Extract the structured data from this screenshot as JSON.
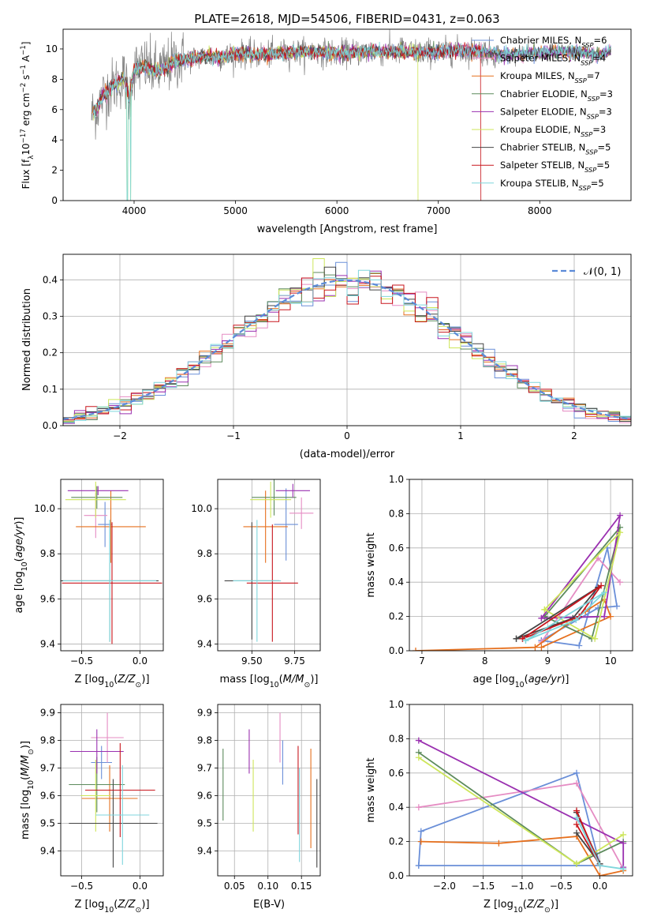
{
  "figure": {
    "title": "PLATE=2618, MJD=54506, FIBERID=0431, z=0.063"
  },
  "series": [
    {
      "name": "Chabrier MILES",
      "nssp": "6",
      "color": "#6a8fd8"
    },
    {
      "name": "Salpeter MILES",
      "nssp": "4",
      "color": "#e58cc3"
    },
    {
      "name": "Kroupa MILES",
      "nssp": "7",
      "color": "#e6701e"
    },
    {
      "name": "Chabrier ELODIE",
      "nssp": "3",
      "color": "#5c8a5c"
    },
    {
      "name": "Salpeter ELODIE",
      "nssp": "3",
      "color": "#9a30b0"
    },
    {
      "name": "Kroupa ELODIE",
      "nssp": "3",
      "color": "#cde65a"
    },
    {
      "name": "Chabrier STELIB",
      "nssp": "5",
      "color": "#444444"
    },
    {
      "name": "Salpeter STELIB",
      "nssp": "5",
      "color": "#c8161d"
    },
    {
      "name": "Kroupa STELIB",
      "nssp": "5",
      "color": "#7fd6dc"
    }
  ],
  "chart_data": [
    {
      "id": "spectrum",
      "type": "line",
      "xlabel": "wavelength [Angstrom, rest frame]",
      "ylabel": "Flux [f_λ10^-17 erg cm^-2 s^-1 A^-1]",
      "xlim": [
        3300,
        8900
      ],
      "ylim": [
        0,
        11.3
      ],
      "xticks": [
        4000,
        5000,
        6000,
        7000,
        8000
      ],
      "yticks": [
        0,
        2,
        4,
        6,
        8,
        10
      ],
      "data_color": "#808080",
      "continuum": {
        "x": [
          3580,
          3650,
          3700,
          3800,
          3900,
          3950,
          4000,
          4100,
          4200,
          4300,
          4400,
          4500,
          4700,
          4900,
          5000,
          5200,
          5400,
          5600,
          5800,
          6000,
          6200,
          6400,
          6600,
          6800,
          7000,
          7200,
          7400,
          7600,
          7800,
          8000,
          8200,
          8400,
          8600,
          8700
        ],
        "y": [
          5.6,
          6.3,
          7.0,
          7.6,
          8.1,
          6.8,
          8.6,
          8.9,
          8.5,
          8.7,
          9.2,
          9.3,
          9.5,
          9.5,
          9.7,
          9.6,
          9.7,
          9.8,
          9.8,
          9.7,
          9.8,
          9.8,
          9.8,
          9.8,
          9.8,
          9.9,
          9.9,
          9.6,
          9.7,
          9.7,
          9.8,
          9.8,
          9.6,
          9.9
        ]
      },
      "dips": [
        {
          "x": 3933,
          "to": 0
        },
        {
          "x": 3968,
          "to": 0
        },
        {
          "x": 6800,
          "to": 0
        },
        {
          "x": 7420,
          "to": 0
        }
      ]
    },
    {
      "id": "residuals",
      "type": "histogram",
      "xlabel": "(data-model)/error",
      "ylabel": "Normed distribution",
      "xlim": [
        -2.5,
        2.5
      ],
      "ylim": [
        0,
        0.47
      ],
      "xticks": [
        -2,
        -1,
        0,
        1,
        2
      ],
      "yticks": [
        0.0,
        0.1,
        0.2,
        0.3,
        0.4
      ],
      "bin_width": 0.1,
      "reference_label": "𝒩(0, 1)",
      "reference_color": "#5b8bd8"
    },
    {
      "id": "age-vs-Z",
      "type": "errorbar",
      "xlabel": "Z [log10(Z/Z⊙)]",
      "ylabel": "age [log10(age/yr)]",
      "xlim": [
        -0.68,
        0.2
      ],
      "ylim": [
        9.37,
        10.13
      ],
      "xticks": [
        -0.5,
        0.0
      ],
      "yticks": [
        9.4,
        9.6,
        9.8,
        10.0
      ],
      "points": [
        {
          "x": -0.3,
          "xerr": 0.06,
          "y": 9.93,
          "yerr": 0.1
        },
        {
          "x": -0.38,
          "xerr": 0.1,
          "y": 9.97,
          "yerr": 0.1
        },
        {
          "x": -0.25,
          "xerr": 0.3,
          "y": 9.92,
          "yerr": 0.16
        },
        {
          "x": -0.37,
          "xerr": 0.22,
          "y": 10.05,
          "yerr": 0.05
        },
        {
          "x": -0.36,
          "xerr": 0.26,
          "y": 10.08,
          "yerr": 0.02
        },
        {
          "x": -0.38,
          "xerr": 0.26,
          "y": 10.04,
          "yerr": 0.08
        },
        {
          "x": -0.26,
          "xerr": 0.42,
          "y": 9.68,
          "yerr": 0.27
        },
        {
          "x": -0.24,
          "xerr": 0.43,
          "y": 9.67,
          "yerr": 0.27
        },
        {
          "x": -0.26,
          "xerr": 0.4,
          "y": 9.68,
          "yerr": 0.27
        }
      ]
    },
    {
      "id": "age-vs-mass",
      "type": "errorbar",
      "xlabel": "mass [log10(M/M⊙)]",
      "ylabel": "",
      "xlim": [
        9.3,
        9.9
      ],
      "ylim": [
        9.37,
        10.13
      ],
      "xticks": [
        9.5,
        9.75
      ],
      "yticks": [
        9.4,
        9.6,
        9.8,
        10.0
      ],
      "points": [
        {
          "x": 9.7,
          "xerr": 0.07,
          "y": 9.93,
          "yerr": 0.16
        },
        {
          "x": 9.79,
          "xerr": 0.07,
          "y": 9.98,
          "yerr": 0.07
        },
        {
          "x": 9.58,
          "xerr": 0.13,
          "y": 9.92,
          "yerr": 0.16
        },
        {
          "x": 9.63,
          "xerr": 0.13,
          "y": 10.05,
          "yerr": 0.08
        },
        {
          "x": 9.74,
          "xerr": 0.1,
          "y": 10.08,
          "yerr": 0.03
        },
        {
          "x": 9.61,
          "xerr": 0.12,
          "y": 10.04,
          "yerr": 0.08
        },
        {
          "x": 9.5,
          "xerr": 0.16,
          "y": 9.68,
          "yerr": 0.26
        },
        {
          "x": 9.62,
          "xerr": 0.15,
          "y": 9.67,
          "yerr": 0.26
        },
        {
          "x": 9.53,
          "xerr": 0.14,
          "y": 9.68,
          "yerr": 0.27
        }
      ]
    },
    {
      "id": "mass-weight-vs-age",
      "type": "line",
      "xlabel": "age [log10(age/yr)]",
      "ylabel": "mass weight",
      "xlim": [
        6.8,
        10.35
      ],
      "ylim": [
        0.0,
        1.0
      ],
      "xticks": [
        7,
        8,
        9,
        10
      ],
      "yticks": [
        0.0,
        0.2,
        0.4,
        0.6,
        0.8,
        1.0
      ],
      "lines": [
        {
          "x": [
            8.9,
            9.5,
            9.95,
            10.1,
            9.8,
            8.9
          ],
          "y": [
            0.06,
            0.03,
            0.6,
            0.26,
            0.25,
            0.06
          ]
        },
        {
          "x": [
            8.9,
            9.8,
            10.15
          ],
          "y": [
            0.05,
            0.54,
            0.4
          ]
        },
        {
          "x": [
            6.9,
            8.8,
            9.6,
            9.9,
            10.0,
            8.9
          ],
          "y": [
            0.0,
            0.02,
            0.23,
            0.3,
            0.2,
            0.02
          ]
        },
        {
          "x": [
            8.95,
            9.7,
            10.15,
            8.95
          ],
          "y": [
            0.2,
            0.07,
            0.72,
            0.2
          ]
        },
        {
          "x": [
            8.9,
            9.9,
            10.15,
            8.9
          ],
          "y": [
            0.19,
            0.2,
            0.79,
            0.19
          ]
        },
        {
          "x": [
            8.95,
            9.75,
            10.15,
            8.95
          ],
          "y": [
            0.24,
            0.07,
            0.69,
            0.24
          ]
        },
        {
          "x": [
            8.5,
            9.4,
            9.8,
            8.5
          ],
          "y": [
            0.07,
            0.19,
            0.37,
            0.07
          ]
        },
        {
          "x": [
            8.6,
            9.5,
            9.85,
            8.6
          ],
          "y": [
            0.07,
            0.2,
            0.38,
            0.07
          ]
        },
        {
          "x": [
            8.65,
            9.45,
            9.9,
            8.65
          ],
          "y": [
            0.06,
            0.18,
            0.34,
            0.06
          ]
        }
      ]
    },
    {
      "id": "mass-vs-Z",
      "type": "errorbar",
      "xlabel": "Z [log10(Z/Z⊙)]",
      "ylabel": "mass [log10(M/M⊙)]",
      "xlim": [
        -0.68,
        0.2
      ],
      "ylim": [
        9.31,
        9.93
      ],
      "xticks": [
        -0.5,
        0.0
      ],
      "yticks": [
        9.4,
        9.5,
        9.6,
        9.7,
        9.8,
        9.9
      ],
      "points": [
        {
          "x": -0.33,
          "xerr": 0.09,
          "y": 9.72,
          "yerr": 0.06
        },
        {
          "x": -0.28,
          "xerr": 0.14,
          "y": 9.81,
          "yerr": 0.09
        },
        {
          "x": -0.26,
          "xerr": 0.24,
          "y": 9.59,
          "yerr": 0.12
        },
        {
          "x": -0.37,
          "xerr": 0.24,
          "y": 9.64,
          "yerr": 0.1
        },
        {
          "x": -0.37,
          "xerr": 0.23,
          "y": 9.76,
          "yerr": 0.08
        },
        {
          "x": -0.38,
          "xerr": 0.13,
          "y": 9.6,
          "yerr": 0.13
        },
        {
          "x": -0.23,
          "xerr": 0.38,
          "y": 9.5,
          "yerr": 0.16
        },
        {
          "x": -0.17,
          "xerr": 0.3,
          "y": 9.62,
          "yerr": 0.17
        },
        {
          "x": -0.15,
          "xerr": 0.23,
          "y": 9.53,
          "yerr": 0.18
        }
      ]
    },
    {
      "id": "mass-vs-ebv",
      "type": "errorbar",
      "xlabel": "E(B-V)",
      "ylabel": "",
      "xlim": [
        0.025,
        0.178
      ],
      "ylim": [
        9.31,
        9.93
      ],
      "xticks": [
        0.05,
        0.1,
        0.15
      ],
      "yticks": [
        9.4,
        9.5,
        9.6,
        9.7,
        9.8,
        9.9
      ],
      "points": [
        {
          "x": 0.122,
          "y": 9.72,
          "yerr": 0.08
        },
        {
          "x": 0.118,
          "y": 9.81,
          "yerr": 0.09
        },
        {
          "x": 0.164,
          "y": 9.59,
          "yerr": 0.18
        },
        {
          "x": 0.033,
          "y": 9.64,
          "yerr": 0.13
        },
        {
          "x": 0.072,
          "y": 9.76,
          "yerr": 0.08
        },
        {
          "x": 0.078,
          "y": 9.6,
          "yerr": 0.13
        },
        {
          "x": 0.173,
          "y": 9.5,
          "yerr": 0.16
        },
        {
          "x": 0.145,
          "y": 9.62,
          "yerr": 0.16
        },
        {
          "x": 0.147,
          "y": 9.53,
          "yerr": 0.17
        }
      ]
    },
    {
      "id": "mass-weight-vs-Z",
      "type": "line",
      "xlabel": "Z [log10(Z/Z⊙)]",
      "ylabel": "mass weight",
      "xlim": [
        -2.45,
        0.42
      ],
      "ylim": [
        0.0,
        1.0
      ],
      "xticks": [
        -2.0,
        -1.5,
        -1.0,
        -0.5,
        0.0
      ],
      "yticks": [
        0.0,
        0.2,
        0.4,
        0.6,
        0.8,
        1.0
      ],
      "lines": [
        {
          "x": [
            -2.33,
            -2.3,
            -0.3,
            0.0,
            -2.33
          ],
          "y": [
            0.06,
            0.26,
            0.6,
            0.06,
            0.06
          ]
        },
        {
          "x": [
            -2.33,
            -0.3,
            0.3
          ],
          "y": [
            0.4,
            0.54,
            0.04
          ]
        },
        {
          "x": [
            -2.3,
            -1.3,
            -0.3,
            0.0,
            0.3
          ],
          "y": [
            0.2,
            0.19,
            0.23,
            0.0,
            0.03
          ]
        },
        {
          "x": [
            -2.33,
            -0.3,
            0.3
          ],
          "y": [
            0.72,
            0.07,
            0.2
          ]
        },
        {
          "x": [
            -2.33,
            0.3,
            0.3
          ],
          "y": [
            0.79,
            0.19,
            0.05
          ]
        },
        {
          "x": [
            -2.33,
            -0.3,
            0.3
          ],
          "y": [
            0.69,
            0.07,
            0.24
          ]
        },
        {
          "x": [
            -0.3,
            0.0,
            -0.3
          ],
          "y": [
            0.37,
            0.07,
            0.25
          ]
        },
        {
          "x": [
            -0.3,
            0.0,
            -0.3
          ],
          "y": [
            0.38,
            0.06,
            0.3
          ]
        },
        {
          "x": [
            -0.3,
            0.0,
            0.3
          ],
          "y": [
            0.34,
            0.06,
            0.04
          ]
        }
      ]
    }
  ]
}
